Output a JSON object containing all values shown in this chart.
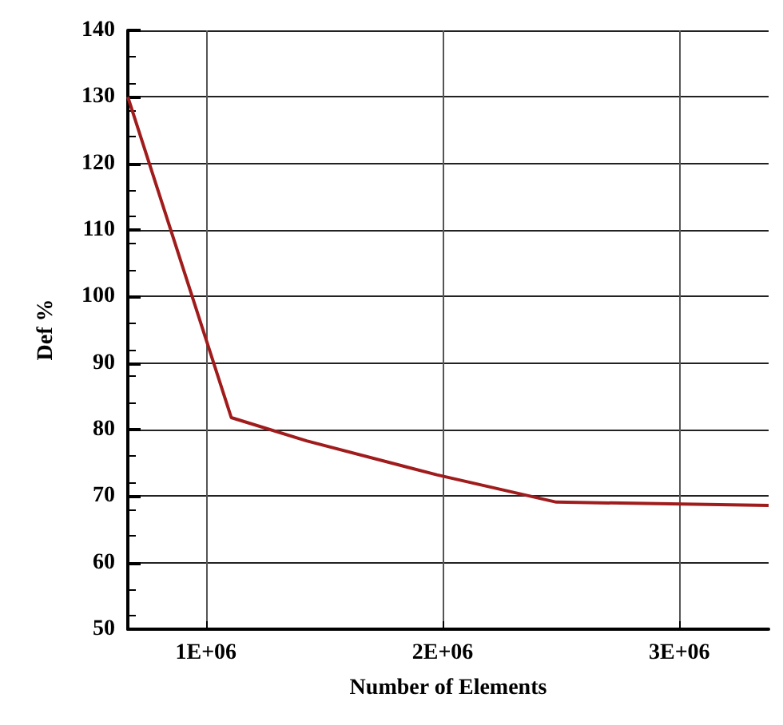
{
  "chart_data": {
    "type": "line",
    "xlabel": "Number of Elements",
    "ylabel": "Def %",
    "x": [
      670000,
      1107000,
      1425000,
      1975000,
      2480000,
      3377000
    ],
    "series": [
      {
        "color": "#a01c1c",
        "values": [
          130,
          81.8,
          78.3,
          73.2,
          69.1,
          68.6
        ]
      }
    ],
    "xlim": [
      670000,
      3377000
    ],
    "xticks": [
      {
        "value": 1000000,
        "label": "1E+06"
      },
      {
        "value": 2000000,
        "label": "2E+06"
      },
      {
        "value": 3000000,
        "label": "3E+06"
      }
    ],
    "ylim": [
      50,
      140
    ],
    "yticks": [
      50,
      60,
      70,
      80,
      90,
      100,
      110,
      120,
      130,
      140
    ],
    "grid": true,
    "marker": "none",
    "line_style": "solid"
  }
}
